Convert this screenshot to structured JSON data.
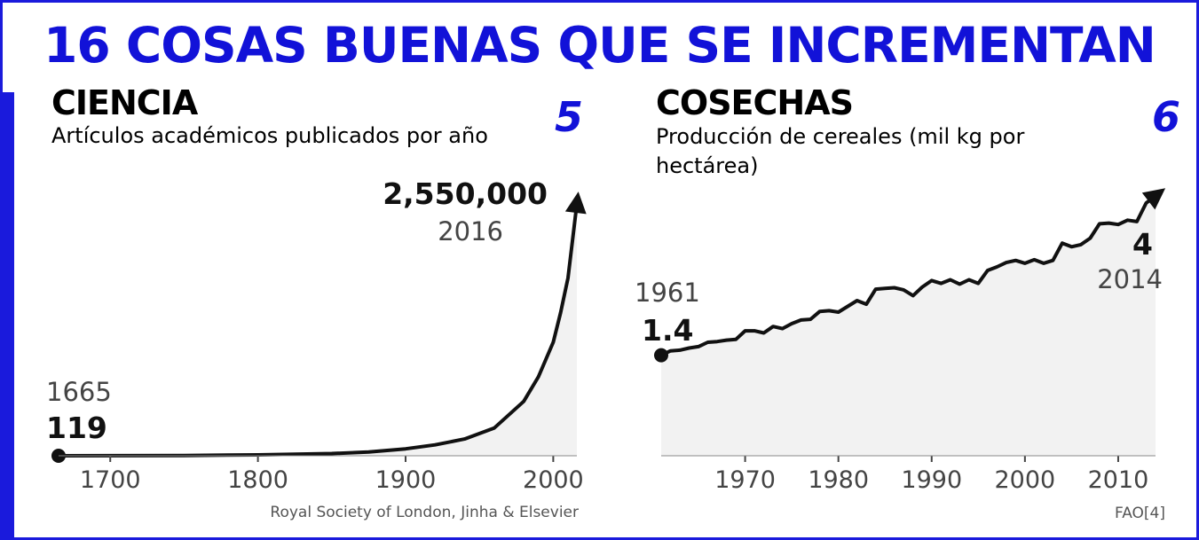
{
  "title": "16 COSAS BUENAS QUE SE INCREMENTAN",
  "colors": {
    "accent": "#1a1adc",
    "line": "#111111",
    "fill": "#f2f2f2",
    "muted": "#555555"
  },
  "chart_data": [
    {
      "type": "area",
      "panel_title": "CIENCIA",
      "title": "Artículos académicos publicados por año",
      "number": "5",
      "x": [
        1665,
        1700,
        1750,
        1800,
        1850,
        1875,
        1900,
        1920,
        1940,
        1960,
        1980,
        1990,
        2000,
        2005,
        2010,
        2016
      ],
      "y": [
        119,
        700,
        3000,
        9000,
        22000,
        38000,
        70000,
        110000,
        170000,
        280000,
        550000,
        800000,
        1150000,
        1450000,
        1800000,
        2550000
      ],
      "xlim": [
        1665,
        2016
      ],
      "ylim": [
        0,
        2550000
      ],
      "xticks": [
        "1700",
        "1800",
        "1900",
        "2000"
      ],
      "start": {
        "year": "1665",
        "value": "119"
      },
      "end": {
        "year": "2016",
        "value": "2,550,000"
      },
      "source": "Royal Society of London, Jinha & Elsevier"
    },
    {
      "type": "area",
      "panel_title": "COSECHAS",
      "title": "Producción de cereales (mil kg por hectárea)",
      "number": "6",
      "x": [
        1961,
        1962,
        1963,
        1964,
        1965,
        1966,
        1967,
        1968,
        1969,
        1970,
        1971,
        1972,
        1973,
        1974,
        1975,
        1976,
        1977,
        1978,
        1979,
        1980,
        1981,
        1982,
        1983,
        1984,
        1985,
        1986,
        1987,
        1988,
        1989,
        1990,
        1991,
        1992,
        1993,
        1994,
        1995,
        1996,
        1997,
        1998,
        1999,
        2000,
        2001,
        2002,
        2003,
        2004,
        2005,
        2006,
        2007,
        2008,
        2009,
        2010,
        2011,
        2012,
        2013,
        2014
      ],
      "y": [
        1.4,
        1.46,
        1.47,
        1.5,
        1.52,
        1.58,
        1.59,
        1.61,
        1.62,
        1.74,
        1.74,
        1.71,
        1.8,
        1.77,
        1.84,
        1.89,
        1.9,
        2.01,
        2.02,
        2.0,
        2.08,
        2.16,
        2.11,
        2.32,
        2.33,
        2.34,
        2.31,
        2.23,
        2.35,
        2.44,
        2.4,
        2.45,
        2.39,
        2.45,
        2.4,
        2.58,
        2.63,
        2.69,
        2.72,
        2.68,
        2.73,
        2.68,
        2.72,
        2.96,
        2.91,
        2.94,
        3.03,
        3.23,
        3.24,
        3.22,
        3.28,
        3.26,
        3.52,
        3.62
      ],
      "xlim": [
        1961,
        2014
      ],
      "ylim": [
        0,
        4.0
      ],
      "xticks": [
        "1970",
        "1980",
        "1990",
        "2000",
        "2010"
      ],
      "start": {
        "year": "1961",
        "value": "1.4"
      },
      "end": {
        "year": "2014",
        "value": "4"
      },
      "source": "FAO[4]"
    }
  ]
}
